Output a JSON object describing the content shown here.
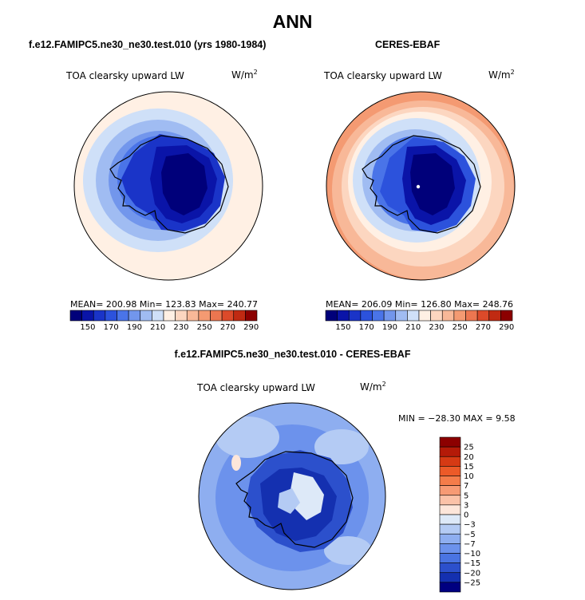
{
  "title": "ANN",
  "panels": [
    {
      "id": "model",
      "header": "f.e12.FAMIPC5.ne30_ne30.test.010 (yrs 1980-1984)",
      "variable": "TOA clearsky upward LW",
      "units_base": "W/m",
      "units_exp": "2",
      "stats": "MEAN= 200.98   Min= 123.83   Max= 240.77"
    },
    {
      "id": "obs",
      "header": "CERES-EBAF",
      "variable": "TOA clearsky upward LW",
      "units_base": "W/m",
      "units_exp": "2",
      "stats": "MEAN= 206.09   Min= 126.80   Max= 248.76"
    },
    {
      "id": "diff",
      "header": "f.e12.FAMIPC5.ne30_ne30.test.010 - CERES-EBAF",
      "variable": "TOA clearsky upward LW",
      "units_base": "W/m",
      "units_exp": "2",
      "stats": "MIN = −28.30  MAX =    9.58"
    }
  ],
  "abs_colorbar": {
    "labels": [
      "150",
      "170",
      "190",
      "210",
      "230",
      "250",
      "270",
      "290"
    ],
    "colors": [
      "#00007a",
      "#0a14a8",
      "#1a34c8",
      "#2c52dc",
      "#4a74e8",
      "#7296ec",
      "#a0bcf2",
      "#cfe0f8",
      "#fff0e4",
      "#fcd6c0",
      "#f8b898",
      "#f49a72",
      "#ec7650",
      "#dc4a2a",
      "#c02a12",
      "#8c0000"
    ]
  },
  "diff_colorbar": {
    "labels": [
      "25",
      "20",
      "15",
      "10",
      "7",
      "5",
      "3",
      "0",
      "−3",
      "−5",
      "−7",
      "−10",
      "−15",
      "−20",
      "−25"
    ],
    "colors": [
      "#8c0000",
      "#b41a08",
      "#d63a14",
      "#ec5a28",
      "#f47c4a",
      "#f79a74",
      "#fbc2a8",
      "#fde6da",
      "#dde9f8",
      "#b4cbf4",
      "#8eaef0",
      "#6c92ec",
      "#4a74e2",
      "#2c50cc",
      "#1430b0",
      "#000080"
    ]
  }
}
